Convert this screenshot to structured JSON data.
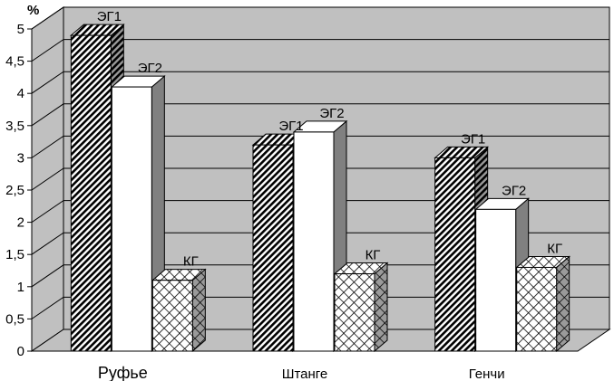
{
  "chart_data": {
    "type": "bar",
    "ylabel": "%",
    "ylim": [
      0,
      5
    ],
    "ytick_labels": [
      "0",
      "0,5",
      "1",
      "1,5",
      "2",
      "2,5",
      "3",
      "3,5",
      "4",
      "4,5",
      "5"
    ],
    "categories": [
      "Руфье",
      "Штанге",
      "Генчи"
    ],
    "series": [
      {
        "name": "ЭГ1",
        "values": [
          4.9,
          3.2,
          3.0
        ],
        "pattern": "diagonal-hatch"
      },
      {
        "name": "ЭГ2",
        "values": [
          4.1,
          3.4,
          2.2
        ],
        "pattern": "white"
      },
      {
        "name": "КГ",
        "values": [
          1.1,
          1.2,
          1.3
        ],
        "pattern": "crosshatch"
      }
    ],
    "grid": true,
    "style": "3d",
    "colors": {
      "wall": "#c0c0c0",
      "floor": "#c0c0c0",
      "grid": "#000000",
      "bar_fill": "#ffffff",
      "bar_side": "#808080"
    }
  }
}
